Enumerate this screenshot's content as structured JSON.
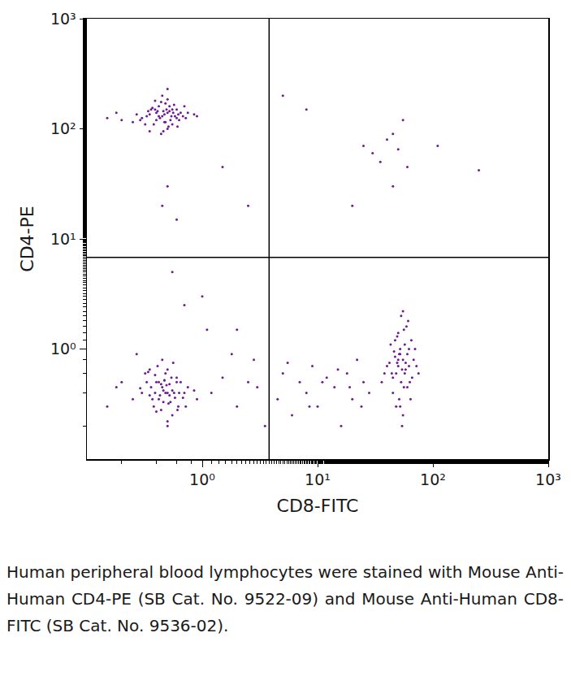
{
  "chart_data": {
    "type": "scatter",
    "x_label": "CD8-FITC",
    "y_label": "CD4-PE",
    "caption": "Human peripheral blood lymphocytes were stained with Mouse Anti-Human CD4-PE (SB Cat. No. 9522-09) and Mouse Anti-Human CD8-FITC (SB Cat. No. 9536-02).",
    "log": true,
    "grid": false,
    "color": "#6e1b91",
    "marker": "circle",
    "xlim": [
      0.1,
      1000
    ],
    "ylim": [
      0.1,
      1000
    ],
    "xticks": [
      {
        "value": 1,
        "label": "10⁰"
      },
      {
        "value": 10,
        "label": "10¹"
      },
      {
        "value": 100,
        "label": "10²"
      },
      {
        "value": 1000,
        "label": "10³"
      }
    ],
    "yticks": [
      {
        "value": 1,
        "label": "10⁰"
      },
      {
        "value": 10,
        "label": "10¹"
      },
      {
        "value": 100,
        "label": "10²"
      },
      {
        "value": 1000,
        "label": "10³"
      }
    ],
    "quadrant_x": 3.8,
    "quadrant_y": 6.8,
    "x": [
      0.45,
      0.5,
      0.4,
      0.55,
      0.35,
      0.6,
      0.42,
      0.48,
      0.52,
      0.38,
      0.3,
      0.65,
      0.44,
      0.5,
      0.58,
      0.36,
      0.47,
      0.53,
      0.41,
      0.7,
      0.25,
      0.33,
      0.46,
      0.62,
      0.39,
      0.55,
      0.49,
      0.43,
      0.75,
      0.2,
      0.57,
      0.34,
      0.51,
      0.45,
      0.68,
      0.29,
      0.4,
      0.6,
      0.48,
      0.85,
      0.15,
      0.37,
      0.54,
      0.44,
      0.5,
      0.63,
      0.32,
      0.46,
      0.56,
      0.42,
      0.18,
      0.72,
      0.27,
      0.52,
      0.39,
      0.47,
      0.9,
      0.61,
      0.35,
      0.5,
      0.45,
      0.5,
      0.4,
      0.55,
      0.35,
      0.6,
      0.42,
      0.48,
      0.52,
      0.38,
      0.3,
      0.65,
      0.44,
      0.5,
      0.58,
      0.36,
      0.47,
      0.53,
      0.41,
      0.7,
      0.25,
      0.33,
      0.46,
      0.62,
      0.39,
      0.55,
      0.49,
      0.43,
      0.75,
      0.2,
      0.57,
      0.34,
      0.51,
      0.45,
      0.68,
      0.29,
      0.4,
      0.6,
      0.48,
      0.85,
      0.15,
      0.37,
      0.54,
      0.44,
      0.5,
      0.63,
      0.32,
      0.46,
      0.56,
      0.42,
      0.18,
      0.72,
      0.27,
      0.52,
      0.39,
      0.47,
      0.9,
      0.61,
      0.35,
      0.5,
      50,
      55,
      48,
      60,
      45,
      52,
      58,
      42,
      65,
      53,
      47,
      56,
      62,
      50,
      44,
      57,
      51,
      68,
      46,
      54,
      59,
      40,
      63,
      49,
      55,
      52,
      70,
      45,
      58,
      61,
      38,
      53,
      66,
      48,
      56,
      50,
      43,
      60,
      54,
      72,
      47,
      57,
      51,
      64,
      36,
      55,
      49,
      62,
      52,
      75,
      1.2,
      1.5,
      2,
      2.5,
      3,
      4.5,
      5,
      6,
      7,
      8,
      9,
      10,
      12,
      14,
      16,
      18,
      20,
      22,
      25,
      28,
      1.8,
      3.5,
      5.5,
      8.5,
      11,
      15,
      19,
      24,
      1.1,
      2.8,
      0.5,
      0.45,
      0.6,
      0.55,
      1.5,
      2.5,
      5,
      8,
      25,
      30,
      35,
      40,
      45,
      50,
      55,
      60,
      20,
      45,
      110,
      250,
      0.7,
      1.0,
      2
    ],
    "values": [
      130,
      140,
      120,
      150,
      135,
      125,
      160,
      115,
      145,
      110,
      125,
      140,
      175,
      100,
      130,
      150,
      135,
      120,
      145,
      160,
      115,
      130,
      95,
      135,
      180,
      110,
      150,
      125,
      140,
      120,
      165,
      145,
      105,
      200,
      130,
      120,
      140,
      150,
      170,
      135,
      125,
      155,
      130,
      90,
      185,
      120,
      110,
      145,
      140,
      130,
      140,
      125,
      135,
      160,
      150,
      115,
      130,
      105,
      95,
      230,
      0.45,
      0.4,
      0.5,
      0.42,
      0.38,
      0.55,
      0.35,
      0.6,
      0.48,
      0.3,
      0.4,
      0.5,
      0.28,
      0.65,
      0.36,
      0.45,
      0.52,
      0.33,
      0.7,
      0.4,
      0.35,
      0.5,
      0.42,
      0.3,
      0.58,
      0.25,
      0.47,
      0.38,
      0.45,
      0.5,
      0.4,
      0.62,
      0.32,
      0.8,
      0.36,
      0.44,
      0.27,
      0.5,
      0.4,
      0.42,
      0.3,
      0.35,
      0.55,
      0.48,
      0.22,
      0.4,
      0.6,
      0.33,
      0.75,
      0.5,
      0.45,
      0.3,
      0.9,
      0.38,
      0.4,
      0.52,
      0.35,
      0.28,
      0.65,
      0.2,
      0.7,
      0.8,
      0.6,
      0.9,
      0.55,
      1.0,
      0.65,
      0.75,
      1.2,
      0.5,
      0.85,
      0.45,
      0.7,
      1.4,
      0.6,
      1.1,
      0.35,
      0.8,
      0.95,
      0.65,
      1.6,
      0.7,
      0.5,
      1.3,
      0.25,
      0.9,
      1.0,
      0.4,
      0.75,
      1.8,
      0.6,
      2.0,
      0.55,
      0.3,
      1.5,
      0.8,
      1.1,
      0.45,
      0.2,
      0.7,
      1.2,
      0.6,
      0.9,
      0.35,
      0.5,
      2.2,
      0.75,
      1.0,
      0.3,
      0.6,
      0.4,
      0.55,
      0.3,
      0.5,
      0.45,
      0.35,
      0.6,
      0.25,
      0.5,
      0.4,
      0.7,
      0.3,
      0.55,
      0.45,
      0.2,
      0.6,
      0.35,
      0.8,
      0.5,
      0.4,
      0.9,
      0.2,
      0.75,
      0.3,
      0.5,
      0.65,
      0.45,
      0.3,
      1.5,
      0.8,
      30,
      20,
      15,
      5,
      45,
      20,
      200,
      150,
      70,
      60,
      50,
      80,
      30,
      65,
      120,
      45,
      20,
      90,
      70,
      42,
      2.5,
      3,
      1.5
    ]
  }
}
